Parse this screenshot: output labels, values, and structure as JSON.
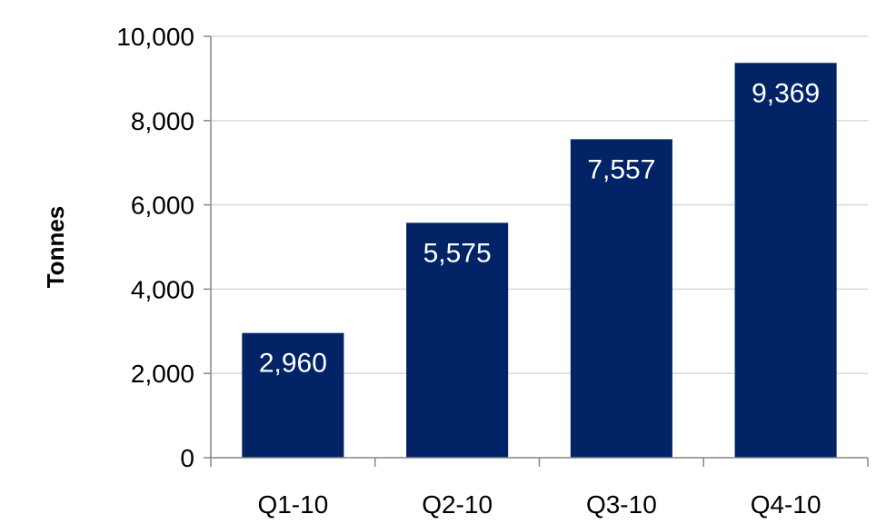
{
  "chart_data": {
    "type": "bar",
    "categories": [
      "Q1-10",
      "Q2-10",
      "Q3-10",
      "Q4-10"
    ],
    "values": [
      2960,
      5575,
      7557,
      9369
    ],
    "data_labels": [
      "2,960",
      "5,575",
      "7,557",
      "9,369"
    ],
    "title": "",
    "xlabel": "",
    "ylabel": "Tonnes",
    "ylim": [
      0,
      10000
    ],
    "yticks": [
      0,
      2000,
      4000,
      6000,
      8000,
      10000
    ],
    "ytick_labels": [
      "0",
      "2,000",
      "4,000",
      "6,000",
      "8,000",
      "10,000"
    ],
    "grid": true,
    "legend": "none",
    "colors": {
      "bar": "#022466",
      "grid": "#d9d9d9",
      "axis": "#868686",
      "data_label": "#ffffff"
    }
  }
}
